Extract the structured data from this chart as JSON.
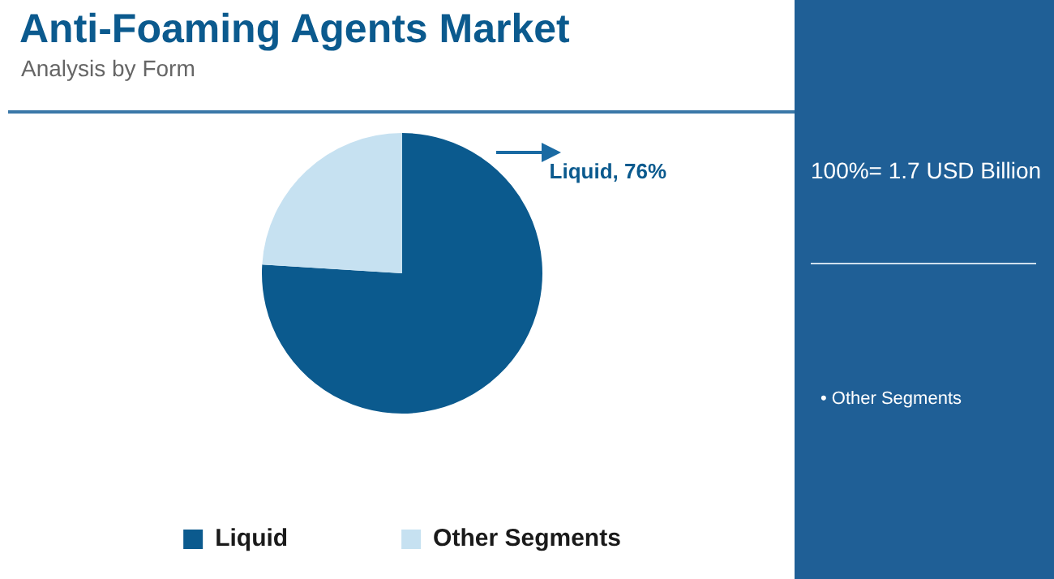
{
  "chart_data": {
    "type": "pie",
    "title": "Anti-Foaming Agents Market",
    "subtitle": "Analysis by Form",
    "categories": [
      "Liquid",
      "Other Segments"
    ],
    "values": [
      76,
      24
    ],
    "colors": [
      "#0b5a8e",
      "#c6e1f1"
    ],
    "value_labels": [
      "Liquid, 76%",
      null
    ],
    "legend": "bottom",
    "annotations": [
      "100%= 1.7 USD Billion",
      "• Other Segments"
    ]
  }
}
